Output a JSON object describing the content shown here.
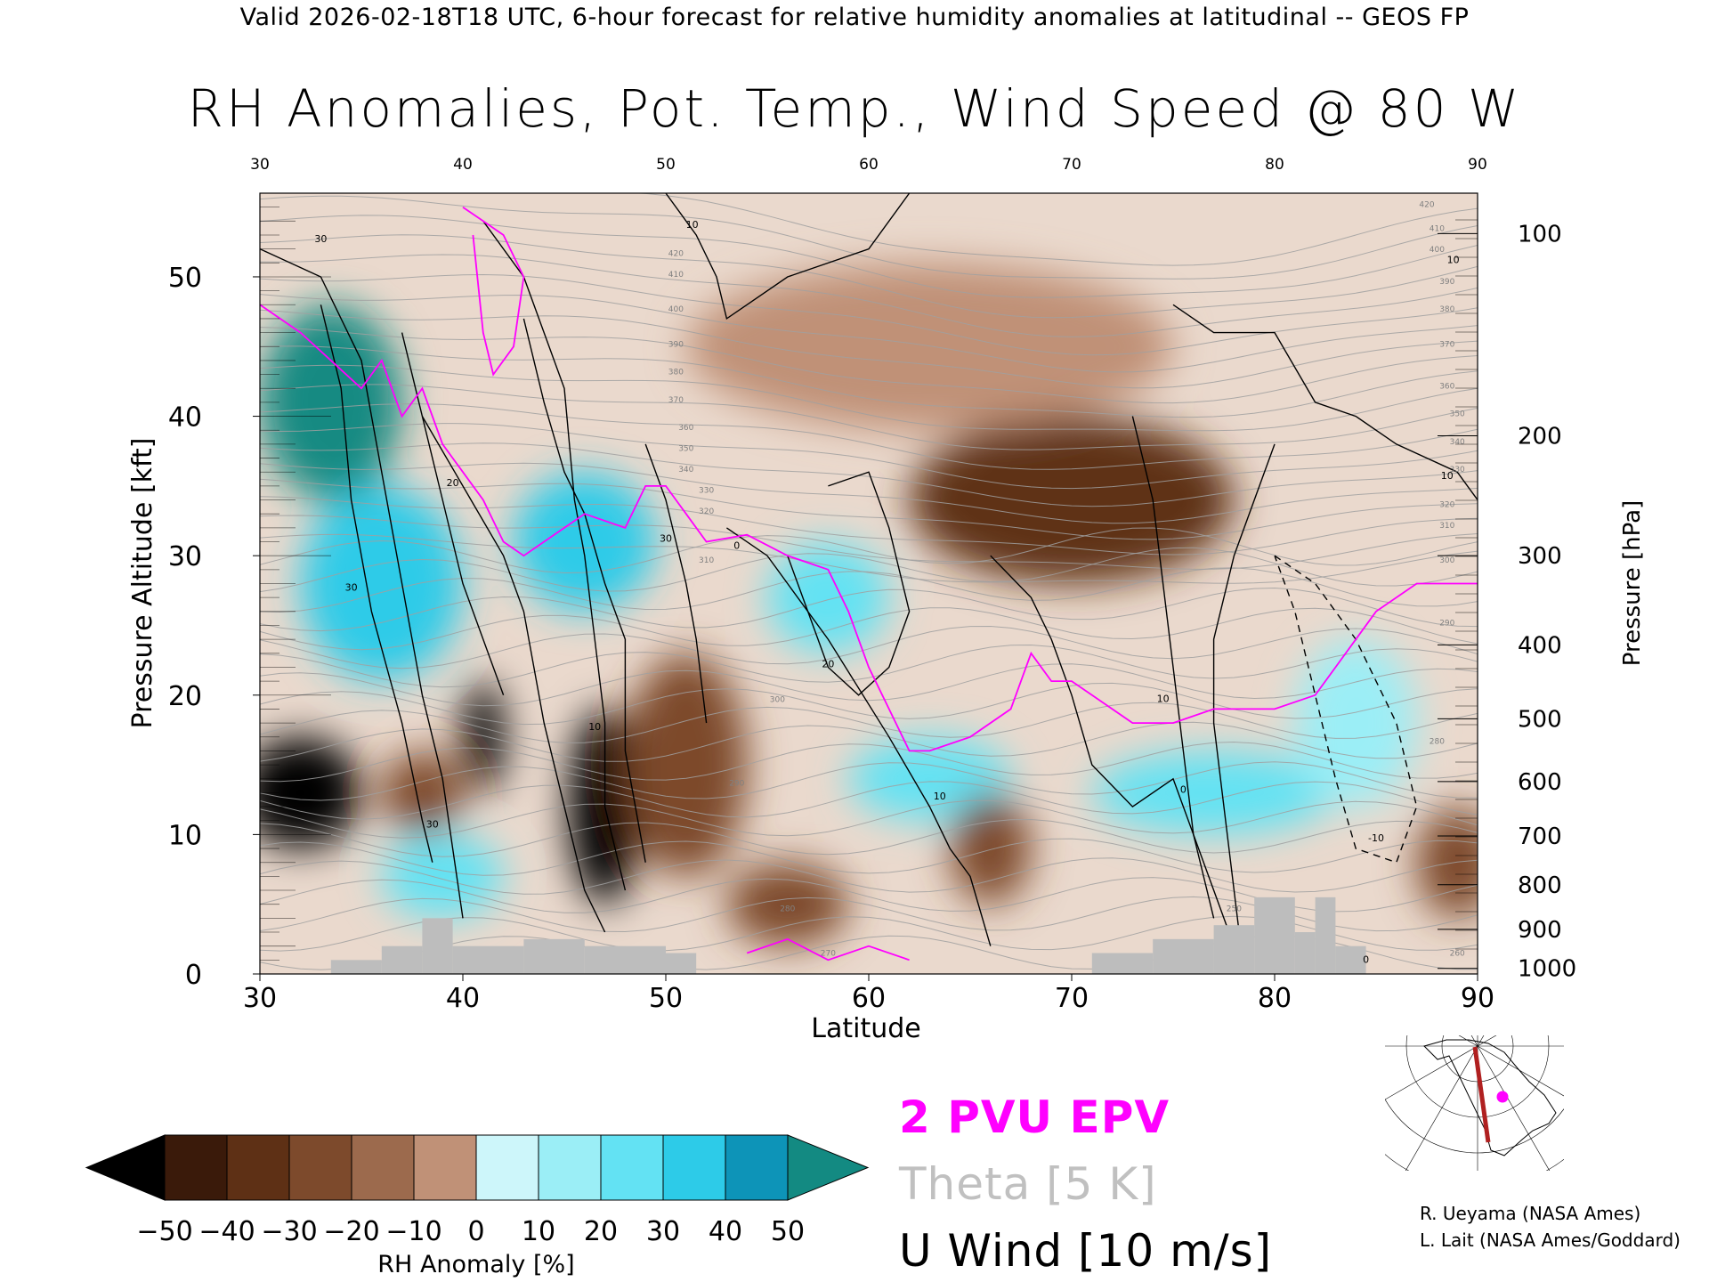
{
  "header": "Valid 2026-02-18T18 UTC, 6-hour forecast for relative humidity anomalies at latitudinal -- GEOS FP",
  "title": "RH Anomalies, Pot. Temp., Wind Speed @ 80 W",
  "chart_data": {
    "type": "heatmap",
    "xlabel": "Latitude",
    "ylabel": "Pressure Altitude [kft]",
    "y2label": "Pressure [hPa]",
    "xlim": [
      30,
      90
    ],
    "ylim": [
      0,
      56
    ],
    "x_ticks": [
      "30",
      "40",
      "50",
      "60",
      "70",
      "80",
      "90"
    ],
    "top_x_ticks": [
      "30",
      "40",
      "50",
      "60",
      "70",
      "80",
      "90"
    ],
    "y_ticks": [
      "0",
      "10",
      "20",
      "30",
      "40",
      "50"
    ],
    "pressure_ticks": [
      {
        "label": "100",
        "kft": 53.1
      },
      {
        "label": "200",
        "kft": 38.6
      },
      {
        "label": "300",
        "kft": 30.0
      },
      {
        "label": "400",
        "kft": 23.6
      },
      {
        "label": "500",
        "kft": 18.3
      },
      {
        "label": "600",
        "kft": 13.8
      },
      {
        "label": "700",
        "kft": 9.9
      },
      {
        "label": "800",
        "kft": 6.4
      },
      {
        "label": "900",
        "kft": 3.2
      },
      {
        "label": "1000",
        "kft": 0.4
      }
    ],
    "colorbar": {
      "label": "RH Anomaly [%]",
      "ticks": [
        "−50",
        "−40",
        "−30",
        "−20",
        "−10",
        "0",
        "10",
        "20",
        "30",
        "40",
        "50"
      ],
      "under_color": "#000000",
      "over_color": "#138a82",
      "colors": [
        "#3a1a0a",
        "#5e3015",
        "#7d4a2c",
        "#9c6a4d",
        "#c09177",
        "#ead9cd",
        "#cdf6fa",
        "#9beef6",
        "#63e2f3",
        "#2dcbe8",
        "#0d94b8"
      ]
    },
    "blobs": [
      {
        "lat": 33.5,
        "kft": 41,
        "anom": 50,
        "rx": 3.5,
        "ry": 7
      },
      {
        "lat": 36,
        "kft": 28,
        "anom": 35,
        "rx": 4,
        "ry": 7
      },
      {
        "lat": 32,
        "kft": 13,
        "anom": -55,
        "rx": 3,
        "ry": 4
      },
      {
        "lat": 38,
        "kft": 13,
        "anom": -30,
        "rx": 2,
        "ry": 3
      },
      {
        "lat": 39,
        "kft": 7,
        "anom": 30,
        "rx": 3,
        "ry": 3
      },
      {
        "lat": 41,
        "kft": 17,
        "anom": -55,
        "rx": 1,
        "ry": 4
      },
      {
        "lat": 46,
        "kft": 31,
        "anom": 40,
        "rx": 3.5,
        "ry": 5
      },
      {
        "lat": 47,
        "kft": 12,
        "anom": -60,
        "rx": 1.8,
        "ry": 7
      },
      {
        "lat": 51,
        "kft": 15,
        "anom": -30,
        "rx": 3,
        "ry": 8
      },
      {
        "lat": 56,
        "kft": 5,
        "anom": -35,
        "rx": 3,
        "ry": 3
      },
      {
        "lat": 58,
        "kft": 27,
        "anom": 30,
        "rx": 3,
        "ry": 4
      },
      {
        "lat": 63,
        "kft": 14,
        "anom": 25,
        "rx": 4,
        "ry": 3
      },
      {
        "lat": 66,
        "kft": 9,
        "anom": -30,
        "rx": 2,
        "ry": 4
      },
      {
        "lat": 70,
        "kft": 34,
        "anom": -45,
        "rx": 8,
        "ry": 6
      },
      {
        "lat": 77,
        "kft": 13,
        "anom": 30,
        "rx": 6,
        "ry": 3
      },
      {
        "lat": 84,
        "kft": 18,
        "anom": 20,
        "rx": 3,
        "ry": 6
      },
      {
        "lat": 89,
        "kft": 8,
        "anom": -30,
        "rx": 2,
        "ry": 4
      },
      {
        "lat": 63,
        "kft": 45,
        "anom": -15,
        "rx": 12,
        "ry": 6
      }
    ],
    "topography": [
      {
        "lat": 33.5,
        "kft": 1
      },
      {
        "lat": 36,
        "kft": 2
      },
      {
        "lat": 38,
        "kft": 4
      },
      {
        "lat": 39.5,
        "kft": 2
      },
      {
        "lat": 43,
        "kft": 2.5
      },
      {
        "lat": 46,
        "kft": 2
      },
      {
        "lat": 50,
        "kft": 1.5
      },
      {
        "lat": 71,
        "kft": 1.5
      },
      {
        "lat": 74,
        "kft": 2.5
      },
      {
        "lat": 77,
        "kft": 3.5
      },
      {
        "lat": 79,
        "kft": 5.5
      },
      {
        "lat": 81,
        "kft": 3
      },
      {
        "lat": 82,
        "kft": 5.5
      },
      {
        "lat": 83,
        "kft": 2
      }
    ],
    "theta_labels": [
      {
        "label": "420",
        "lat": 50.5,
        "kft": 51.5
      },
      {
        "label": "410",
        "lat": 50.5,
        "kft": 50
      },
      {
        "label": "400",
        "lat": 50.5,
        "kft": 47.5
      },
      {
        "label": "390",
        "lat": 50.5,
        "kft": 45
      },
      {
        "label": "380",
        "lat": 50.5,
        "kft": 43
      },
      {
        "label": "370",
        "lat": 50.5,
        "kft": 41
      },
      {
        "label": "360",
        "lat": 51,
        "kft": 39
      },
      {
        "label": "350",
        "lat": 51,
        "kft": 37.5
      },
      {
        "label": "340",
        "lat": 51,
        "kft": 36
      },
      {
        "label": "330",
        "lat": 52,
        "kft": 34.5
      },
      {
        "label": "320",
        "lat": 52,
        "kft": 33
      },
      {
        "label": "310",
        "lat": 52,
        "kft": 29.5
      },
      {
        "label": "300",
        "lat": 55.5,
        "kft": 19.5
      },
      {
        "label": "290",
        "lat": 53.5,
        "kft": 13.5
      },
      {
        "label": "280",
        "lat": 56,
        "kft": 4.5
      },
      {
        "label": "270",
        "lat": 58,
        "kft": 1.3
      },
      {
        "label": "420",
        "lat": 87.5,
        "kft": 55
      },
      {
        "label": "410",
        "lat": 88,
        "kft": 53.3
      },
      {
        "label": "400",
        "lat": 88,
        "kft": 51.8
      },
      {
        "label": "390",
        "lat": 88.5,
        "kft": 49.5
      },
      {
        "label": "380",
        "lat": 88.5,
        "kft": 47.5
      },
      {
        "label": "370",
        "lat": 88.5,
        "kft": 45
      },
      {
        "label": "360",
        "lat": 88.5,
        "kft": 42
      },
      {
        "label": "350",
        "lat": 89,
        "kft": 40
      },
      {
        "label": "340",
        "lat": 89,
        "kft": 38
      },
      {
        "label": "330",
        "lat": 89,
        "kft": 36
      },
      {
        "label": "320",
        "lat": 88.5,
        "kft": 33.5
      },
      {
        "label": "310",
        "lat": 88.5,
        "kft": 32
      },
      {
        "label": "300",
        "lat": 88.5,
        "kft": 29.5
      },
      {
        "label": "290",
        "lat": 88.5,
        "kft": 25
      },
      {
        "label": "280",
        "lat": 88,
        "kft": 16.5
      },
      {
        "label": "260",
        "lat": 89,
        "kft": 1.3
      },
      {
        "label": "250",
        "lat": 78,
        "kft": 4.5
      }
    ],
    "wind_labels": [
      {
        "label": "30",
        "lat": 33,
        "kft": 52.5
      },
      {
        "label": "10",
        "lat": 51.3,
        "kft": 53.5
      },
      {
        "label": "10",
        "lat": 88.8,
        "kft": 51
      },
      {
        "label": "10",
        "lat": 88.5,
        "kft": 35.5
      },
      {
        "label": "20",
        "lat": 39.5,
        "kft": 35
      },
      {
        "label": "30",
        "lat": 34.5,
        "kft": 27.5
      },
      {
        "label": "30",
        "lat": 50,
        "kft": 31
      },
      {
        "label": "20",
        "lat": 58,
        "kft": 22
      },
      {
        "label": "10",
        "lat": 46.5,
        "kft": 17.5
      },
      {
        "label": "10",
        "lat": 63.5,
        "kft": 12.5
      },
      {
        "label": "10",
        "lat": 74.5,
        "kft": 19.5
      },
      {
        "label": "0",
        "lat": 75.5,
        "kft": 13
      },
      {
        "label": "30",
        "lat": 38.5,
        "kft": 10.5
      },
      {
        "label": "-10",
        "lat": 85,
        "kft": 9.5
      },
      {
        "label": "0",
        "lat": 84.5,
        "kft": 0.8
      },
      {
        "label": "0",
        "lat": 53.5,
        "kft": 30.5
      }
    ],
    "legend": [
      {
        "label": "2 PVU EPV",
        "color": "#ff00ff"
      },
      {
        "label": "Theta [5 K]",
        "color": "#c0c0c0"
      },
      {
        "label": "U Wind [10 m/s]",
        "color": "#000000"
      }
    ]
  },
  "credits": [
    "R. Ueyama (NASA Ames)",
    "L. Lait (NASA Ames/Goddard)"
  ],
  "colors": {
    "epv": "#ff00ff",
    "theta": "#a0a0a0",
    "wind": "#000000",
    "topography": "#bdbdbd",
    "transect": "#b02020",
    "map_dot": "#ff00ff"
  }
}
